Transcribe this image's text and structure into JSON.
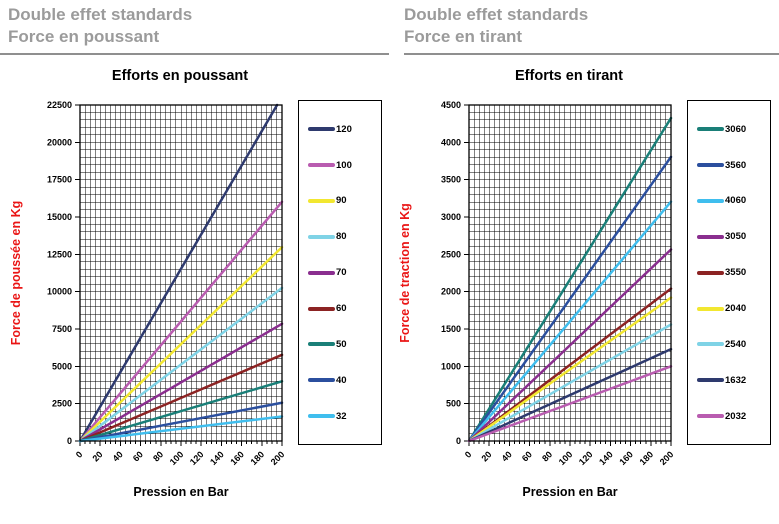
{
  "panels": [
    {
      "header_line1": "Double effet standards",
      "header_line2": "Force en poussant"
    },
    {
      "header_line1": "Double effet standards",
      "header_line2": "Force en tirant"
    }
  ],
  "accent_colors": {
    "axis_title_red": "#ea1515",
    "header_gray": "#9b9b9b"
  },
  "chart_data": [
    {
      "type": "line",
      "title": "Efforts en poussant",
      "xlabel": "Pression en Bar",
      "ylabel": "Force de poussée  en Kg",
      "x_range": [
        0,
        200
      ],
      "x_tick_step": 20,
      "x_minor_step": 5,
      "y_range": [
        0,
        22500
      ],
      "y_tick_step": 2500,
      "y_minor_step": 500,
      "grid": true,
      "legend_position": "right",
      "x_tick_labels": [
        0,
        20,
        40,
        60,
        80,
        100,
        120,
        140,
        160,
        180,
        200
      ],
      "y_tick_labels": [
        0,
        2500,
        5000,
        7500,
        10000,
        12500,
        15000,
        17500,
        20000,
        22500
      ],
      "series": [
        {
          "name": "120",
          "color": "#2e3a6e",
          "x": [
            0,
            200
          ],
          "y": [
            0,
            23060
          ]
        },
        {
          "name": "100",
          "color": "#b95cb0",
          "x": [
            0,
            200
          ],
          "y": [
            0,
            16020
          ]
        },
        {
          "name": "90",
          "color": "#f2e730",
          "x": [
            0,
            200
          ],
          "y": [
            0,
            12980
          ]
        },
        {
          "name": "80",
          "color": "#7fd3e6",
          "x": [
            0,
            200
          ],
          "y": [
            0,
            10250
          ]
        },
        {
          "name": "70",
          "color": "#8a2e8f",
          "x": [
            0,
            200
          ],
          "y": [
            0,
            7850
          ]
        },
        {
          "name": "60",
          "color": "#8c2323",
          "x": [
            0,
            200
          ],
          "y": [
            0,
            5770
          ]
        },
        {
          "name": "50",
          "color": "#1a7f78",
          "x": [
            0,
            200
          ],
          "y": [
            0,
            4000
          ]
        },
        {
          "name": "40",
          "color": "#2b4f9e",
          "x": [
            0,
            200
          ],
          "y": [
            0,
            2560
          ]
        },
        {
          "name": "32",
          "color": "#3fbeee",
          "x": [
            0,
            200
          ],
          "y": [
            0,
            1640
          ]
        }
      ]
    },
    {
      "type": "line",
      "title": "Efforts en tirant",
      "xlabel": "Pression en Bar",
      "ylabel": "Force de traction en Kg",
      "x_range": [
        0,
        200
      ],
      "x_tick_step": 20,
      "x_minor_step": 5,
      "y_range": [
        0,
        4500
      ],
      "y_tick_step": 500,
      "y_minor_step": 100,
      "grid": true,
      "legend_position": "right",
      "x_tick_labels": [
        0,
        20,
        40,
        60,
        80,
        100,
        120,
        140,
        160,
        180,
        200
      ],
      "y_tick_labels": [
        0,
        500,
        1000,
        1500,
        2000,
        2500,
        3000,
        3500,
        4000,
        4500
      ],
      "series": [
        {
          "name": "3060",
          "color": "#1a7f78",
          "x": [
            0,
            200
          ],
          "y": [
            0,
            4325
          ]
        },
        {
          "name": "3560",
          "color": "#2b4f9e",
          "x": [
            0,
            200
          ],
          "y": [
            0,
            3805
          ]
        },
        {
          "name": "4060",
          "color": "#3fbeee",
          "x": [
            0,
            200
          ],
          "y": [
            0,
            3205
          ]
        },
        {
          "name": "3050",
          "color": "#8a2e8f",
          "x": [
            0,
            200
          ],
          "y": [
            0,
            2565
          ]
        },
        {
          "name": "3550",
          "color": "#8c2323",
          "x": [
            0,
            200
          ],
          "y": [
            0,
            2040
          ]
        },
        {
          "name": "2040",
          "color": "#f2e730",
          "x": [
            0,
            200
          ],
          "y": [
            0,
            1920
          ]
        },
        {
          "name": "2540",
          "color": "#7fd3e6",
          "x": [
            0,
            200
          ],
          "y": [
            0,
            1560
          ]
        },
        {
          "name": "1632",
          "color": "#2e3a6e",
          "x": [
            0,
            200
          ],
          "y": [
            0,
            1230
          ]
        },
        {
          "name": "2032",
          "color": "#b95cb0",
          "x": [
            0,
            200
          ],
          "y": [
            0,
            1000
          ]
        }
      ]
    }
  ]
}
